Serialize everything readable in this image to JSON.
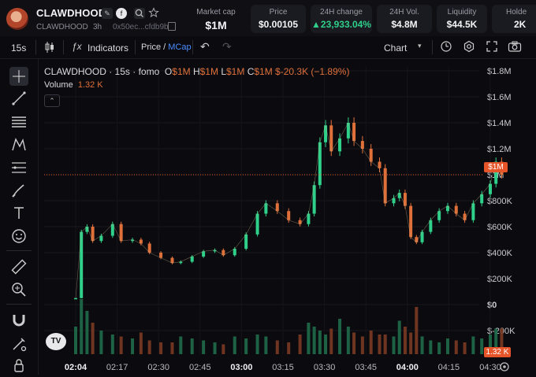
{
  "token": {
    "name": "CLAWDHOOD",
    "symbol": "CLAWDHOOD",
    "age": "3h",
    "address": "0x50ec...cfdb9b"
  },
  "stats": [
    {
      "label": "Market cap",
      "value": "$1M"
    },
    {
      "label": "Price",
      "value": "$0.00105"
    },
    {
      "label": "24H change",
      "value": "▲23,933.04%"
    },
    {
      "label": "24H Vol.",
      "value": "$4.8M"
    },
    {
      "label": "Liquidity",
      "value": "$44.5K"
    },
    {
      "label": "Holde",
      "value": "2K"
    }
  ],
  "toolbar": {
    "interval": "15s",
    "indicators": "Indicators",
    "price": "Price",
    "slash": "/",
    "mcap": "MCap",
    "chart": "Chart"
  },
  "legend": {
    "title": "CLAWDHOOD · 15s · fomo",
    "o_label": "O",
    "o_value": "$1M",
    "h_label": "H",
    "h_value": "$1M",
    "l_label": "L",
    "l_value": "$1M",
    "c_label": "C",
    "c_value": "$1M",
    "change": "$-20.3K (−1.89%)",
    "volume_label": "Volume",
    "volume_value": "1.32 K"
  },
  "price_tag": "$1M",
  "vol_tag": "1.32 K",
  "colors": {
    "up": "#2fd08a",
    "down": "#e0703a",
    "accent": "#e6542a",
    "blue": "#4a8cff"
  },
  "chart_data": {
    "type": "candlestick",
    "title": "CLAWDHOOD · 15s · fomo",
    "y_ticks": [
      "$1.8M",
      "$1.6M",
      "$1.4M",
      "$1.2M",
      "$1M",
      "$800K",
      "$600K",
      "$400K",
      "$200K",
      "$0",
      "$-200K"
    ],
    "y_tick_values": [
      1800000,
      1600000,
      1400000,
      1200000,
      1000000,
      800000,
      600000,
      400000,
      200000,
      0,
      -200000
    ],
    "x_ticks": [
      "02:04",
      "02:17",
      "02:30",
      "02:45",
      "03:00",
      "03:15",
      "03:30",
      "03:45",
      "04:00",
      "04:15",
      "04:30"
    ],
    "x_ticks_bold": [
      "02:04",
      "03:00",
      "04:00"
    ],
    "ylim": [
      -200000,
      1800000
    ],
    "current_value": 1000000,
    "series": [
      {
        "name": "Market cap",
        "x": [
          "02:04",
          "02:06",
          "02:08",
          "02:10",
          "02:13",
          "02:17",
          "02:20",
          "02:24",
          "02:27",
          "02:30",
          "02:34",
          "02:38",
          "02:41",
          "02:45",
          "02:49",
          "02:53",
          "02:56",
          "03:00",
          "03:04",
          "03:08",
          "03:11",
          "03:15",
          "03:19",
          "03:23",
          "03:26",
          "03:28",
          "03:30",
          "03:32",
          "03:34",
          "03:37",
          "03:40",
          "03:42",
          "03:45",
          "03:48",
          "03:51",
          "03:53",
          "03:56",
          "03:58",
          "04:00",
          "04:02",
          "04:04",
          "04:06",
          "04:09",
          "04:12",
          "04:15",
          "04:18",
          "04:21",
          "04:24",
          "04:27",
          "04:30",
          "04:32",
          "04:34"
        ],
        "values": [
          50000,
          560000,
          600000,
          490000,
          530000,
          620000,
          490000,
          500000,
          470000,
          400000,
          360000,
          320000,
          330000,
          370000,
          410000,
          420000,
          380000,
          430000,
          540000,
          700000,
          780000,
          720000,
          650000,
          620000,
          700000,
          920000,
          1250000,
          1380000,
          1180000,
          1280000,
          1400000,
          1260000,
          1200000,
          1100000,
          1050000,
          780000,
          820000,
          860000,
          760000,
          520000,
          480000,
          560000,
          650000,
          720000,
          760000,
          700000,
          650000,
          780000,
          850000,
          930000,
          1100000,
          1000000
        ]
      }
    ],
    "volume_values": [
      1.4,
      2.8,
      2.2,
      1.6,
      1.2,
      1.0,
      0.9,
      0.8,
      1.1,
      0.7,
      0.6,
      0.6,
      0.9,
      0.8,
      0.7,
      0.6,
      0.5,
      0.9,
      0.8,
      1.0,
      0.9,
      0.7,
      0.6,
      1.0,
      1.6,
      1.4,
      1.2,
      1.0,
      1.3,
      1.8,
      1.4,
      1.1,
      0.9,
      1.2,
      1.0,
      1.0,
      0.9,
      1.7,
      1.4,
      1.1,
      2.4,
      0.9,
      0.7,
      0.6,
      0.8,
      0.7,
      0.6,
      0.9,
      0.8,
      1.0,
      1.3,
      1.32
    ]
  }
}
